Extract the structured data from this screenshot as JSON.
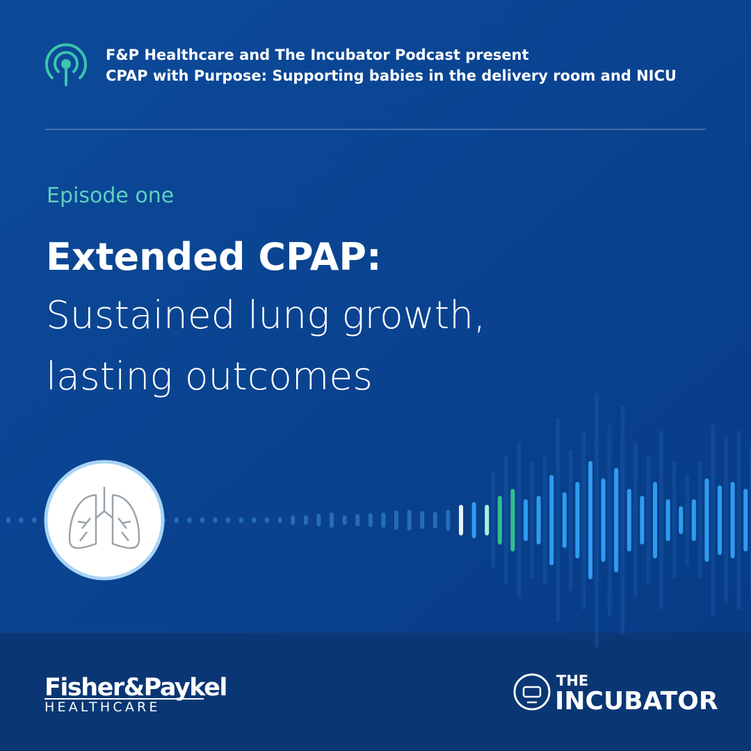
{
  "header": {
    "line1": "F&P Healthcare and The Incubator Podcast present",
    "line2": "CPAP with Purpose: Supporting babies in the delivery room and NICU"
  },
  "episode": "Episode one",
  "title": {
    "bold": "Extended CPAP:",
    "line2": "Sustained lung growth,",
    "line3": "lasting outcomes"
  },
  "footer": {
    "fp_brand": "Fisher&Paykel",
    "fp_sub": "HEALTHCARE",
    "inc_the": "THE",
    "inc_name": "INCUBATOR"
  }
}
